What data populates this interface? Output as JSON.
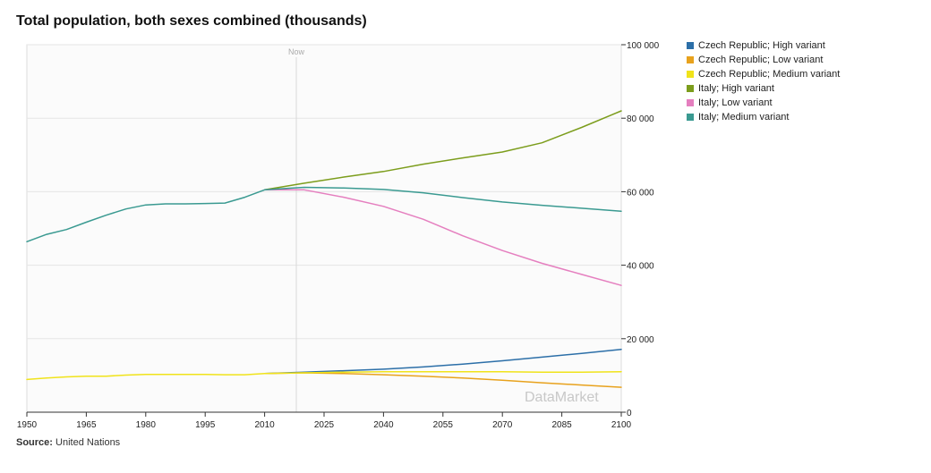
{
  "header": {
    "title": "Total population, both sexes combined (thousands)"
  },
  "footer": {
    "source_label": "Source:",
    "source_value": "United Nations"
  },
  "watermark": "DataMarket",
  "chart_data": {
    "type": "line",
    "title": "Total population, both sexes combined (thousands)",
    "xlabel": "",
    "ylabel": "",
    "xlim": [
      1950,
      2100
    ],
    "ylim": [
      0,
      100000
    ],
    "x_ticks": [
      1950,
      1965,
      1980,
      1995,
      2010,
      2025,
      2040,
      2055,
      2070,
      2085,
      2100
    ],
    "y_ticks": [
      0,
      20000,
      40000,
      60000,
      80000,
      100000
    ],
    "y_tick_labels": [
      "0",
      "20 000",
      "40 000",
      "60 000",
      "80 000",
      "100 000"
    ],
    "grid": true,
    "legend_position": "right",
    "annotation": {
      "label": "Now",
      "x": 2018
    },
    "series": [
      {
        "name": "Czech Republic; High variant",
        "color": "#2c6fa8",
        "x": [
          2010,
          2020,
          2030,
          2040,
          2050,
          2060,
          2070,
          2080,
          2090,
          2100
        ],
        "y": [
          10500,
          10900,
          11300,
          11700,
          12300,
          13100,
          14000,
          15000,
          16000,
          17100
        ]
      },
      {
        "name": "Czech Republic; Low variant",
        "color": "#e8a21d",
        "x": [
          2010,
          2020,
          2030,
          2040,
          2050,
          2060,
          2070,
          2080,
          2090,
          2100
        ],
        "y": [
          10500,
          10700,
          10500,
          10200,
          9800,
          9300,
          8700,
          8000,
          7400,
          6800
        ]
      },
      {
        "name": "Czech Republic; Medium variant",
        "color": "#f0e31a",
        "x": [
          1950,
          1955,
          1960,
          1965,
          1970,
          1975,
          1980,
          1985,
          1990,
          1995,
          2000,
          2005,
          2010,
          2020,
          2030,
          2040,
          2050,
          2060,
          2070,
          2080,
          2090,
          2100
        ],
        "y": [
          8900,
          9300,
          9600,
          9800,
          9800,
          10100,
          10300,
          10300,
          10300,
          10300,
          10200,
          10200,
          10500,
          10700,
          10900,
          11000,
          11000,
          11000,
          11000,
          10900,
          10900,
          11000
        ]
      },
      {
        "name": "Italy; High variant",
        "color": "#7c9d1c",
        "x": [
          2010,
          2020,
          2030,
          2040,
          2050,
          2060,
          2070,
          2080,
          2090,
          2100
        ],
        "y": [
          60500,
          62300,
          64000,
          65500,
          67500,
          69200,
          70800,
          73300,
          77500,
          82000
        ]
      },
      {
        "name": "Italy; Low variant",
        "color": "#e57fbf",
        "x": [
          2010,
          2020,
          2030,
          2040,
          2050,
          2060,
          2070,
          2080,
          2090,
          2100
        ],
        "y": [
          60500,
          60500,
          58500,
          56000,
          52500,
          48000,
          44000,
          40500,
          37500,
          34500
        ]
      },
      {
        "name": "Italy; Medium variant",
        "color": "#3a9a91",
        "x": [
          1950,
          1955,
          1960,
          1965,
          1970,
          1975,
          1980,
          1985,
          1990,
          1995,
          2000,
          2005,
          2010,
          2020,
          2030,
          2040,
          2050,
          2060,
          2070,
          2080,
          2090,
          2100
        ],
        "y": [
          46400,
          48400,
          49700,
          51700,
          53600,
          55300,
          56400,
          56700,
          56700,
          56800,
          56900,
          58500,
          60500,
          61200,
          61000,
          60600,
          59700,
          58400,
          57200,
          56300,
          55500,
          54700
        ]
      }
    ]
  }
}
